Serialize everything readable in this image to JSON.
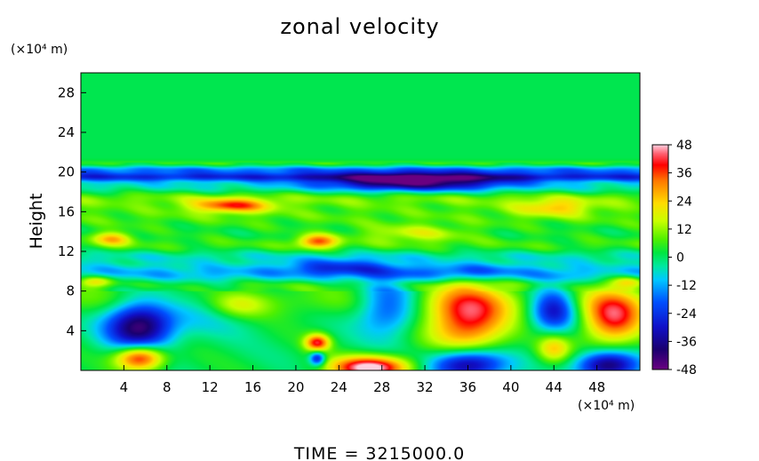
{
  "chart_data": {
    "type": "heatmap",
    "title": "zonal velocity",
    "xlabel": "",
    "ylabel": "Height",
    "x_unit": "(×10⁴ m)",
    "y_unit": "(×10⁴ m)",
    "xlim": [
      0,
      52
    ],
    "ylim": [
      0,
      30
    ],
    "xticks": [
      4,
      8,
      12,
      16,
      20,
      24,
      28,
      32,
      36,
      40,
      44,
      48
    ],
    "yticks": [
      4,
      8,
      12,
      16,
      20,
      24,
      28
    ],
    "colorbar": {
      "vmin": -48,
      "vmax": 48,
      "ticks": [
        48,
        36,
        24,
        12,
        0,
        -12,
        -24,
        -36,
        -48
      ]
    },
    "features": [
      {
        "x": 5.5,
        "y": 4.5,
        "sx": 2.2,
        "sy": 1.8,
        "v": -46
      },
      {
        "x": 5.5,
        "y": 1.3,
        "sx": 1.6,
        "sy": 0.9,
        "v": 45
      },
      {
        "x": 12.5,
        "y": 6.2,
        "sx": 3.0,
        "sy": 1.6,
        "v": -12
      },
      {
        "x": 14.5,
        "y": 6.5,
        "sx": 2.0,
        "sy": 1.0,
        "v": 16
      },
      {
        "x": 22,
        "y": 2.8,
        "sx": 0.8,
        "sy": 0.6,
        "v": 38
      },
      {
        "x": 22,
        "y": 1.2,
        "sx": 0.5,
        "sy": 0.5,
        "v": -32
      },
      {
        "x": 27,
        "y": 0.3,
        "sx": 2.6,
        "sy": 0.8,
        "v": 50
      },
      {
        "x": 28.5,
        "y": 6.5,
        "sx": 2.0,
        "sy": 2.0,
        "v": -26
      },
      {
        "x": 36,
        "y": 5.2,
        "sx": 2.6,
        "sy": 2.4,
        "v": 40
      },
      {
        "x": 36,
        "y": 0.6,
        "sx": 2.5,
        "sy": 1.1,
        "v": -42
      },
      {
        "x": 44,
        "y": 6.2,
        "sx": 1.5,
        "sy": 1.6,
        "v": -34
      },
      {
        "x": 44,
        "y": 2.2,
        "sx": 1.1,
        "sy": 1.0,
        "v": 22
      },
      {
        "x": 49.5,
        "y": 5.3,
        "sx": 2.0,
        "sy": 1.9,
        "v": 38
      },
      {
        "x": 49,
        "y": 0.5,
        "sx": 2.0,
        "sy": 1.0,
        "v": -42
      },
      {
        "x": 31,
        "y": 19.0,
        "sx": 6.0,
        "sy": 0.6,
        "v": -40
      },
      {
        "x": 14,
        "y": 16.6,
        "sx": 2.6,
        "sy": 0.5,
        "v": 30
      },
      {
        "x": 44,
        "y": 16.4,
        "sx": 2.5,
        "sy": 0.6,
        "v": 18
      },
      {
        "x": 22,
        "y": 13.0,
        "sx": 1.3,
        "sy": 0.5,
        "v": 30
      },
      {
        "x": 3,
        "y": 13.3,
        "sx": 1.3,
        "sy": 0.5,
        "v": 22
      },
      {
        "x": 31,
        "y": 13.8,
        "sx": 3.5,
        "sy": 0.6,
        "v": 14
      },
      {
        "x": 24,
        "y": 10.4,
        "sx": 3.5,
        "sy": 0.6,
        "v": -18
      },
      {
        "x": 36,
        "y": 10.0,
        "sx": 3.0,
        "sy": 0.6,
        "v": -14
      },
      {
        "x": 1.5,
        "y": 9.0,
        "sx": 1.2,
        "sy": 0.4,
        "v": 20
      },
      {
        "x": 51,
        "y": 9.0,
        "sx": 1.0,
        "sy": 0.4,
        "v": 14
      }
    ],
    "bands": [
      {
        "y": 20.2,
        "s": 0.35,
        "v": -16
      },
      {
        "y": 19.5,
        "s": 0.3,
        "v": -22
      },
      {
        "y": 20.8,
        "s": 0.25,
        "v": 6
      },
      {
        "y": 18.6,
        "s": 0.6,
        "v": -8
      },
      {
        "y": 17.4,
        "s": 0.6,
        "v": 8
      },
      {
        "y": 15.6,
        "s": 1.0,
        "v": 6
      },
      {
        "y": 12.6,
        "s": 0.6,
        "v": 5
      },
      {
        "y": 11.5,
        "s": 0.5,
        "v": -6
      },
      {
        "y": 9.8,
        "s": 0.7,
        "v": -12
      },
      {
        "y": 8.7,
        "s": 0.4,
        "v": 4
      },
      {
        "y": 7.0,
        "s": 1.2,
        "v": 7
      }
    ]
  },
  "footer": {
    "time_label": "TIME = 3215000.0"
  },
  "colors": {
    "background": "#ffffff",
    "frame": "#000000"
  }
}
